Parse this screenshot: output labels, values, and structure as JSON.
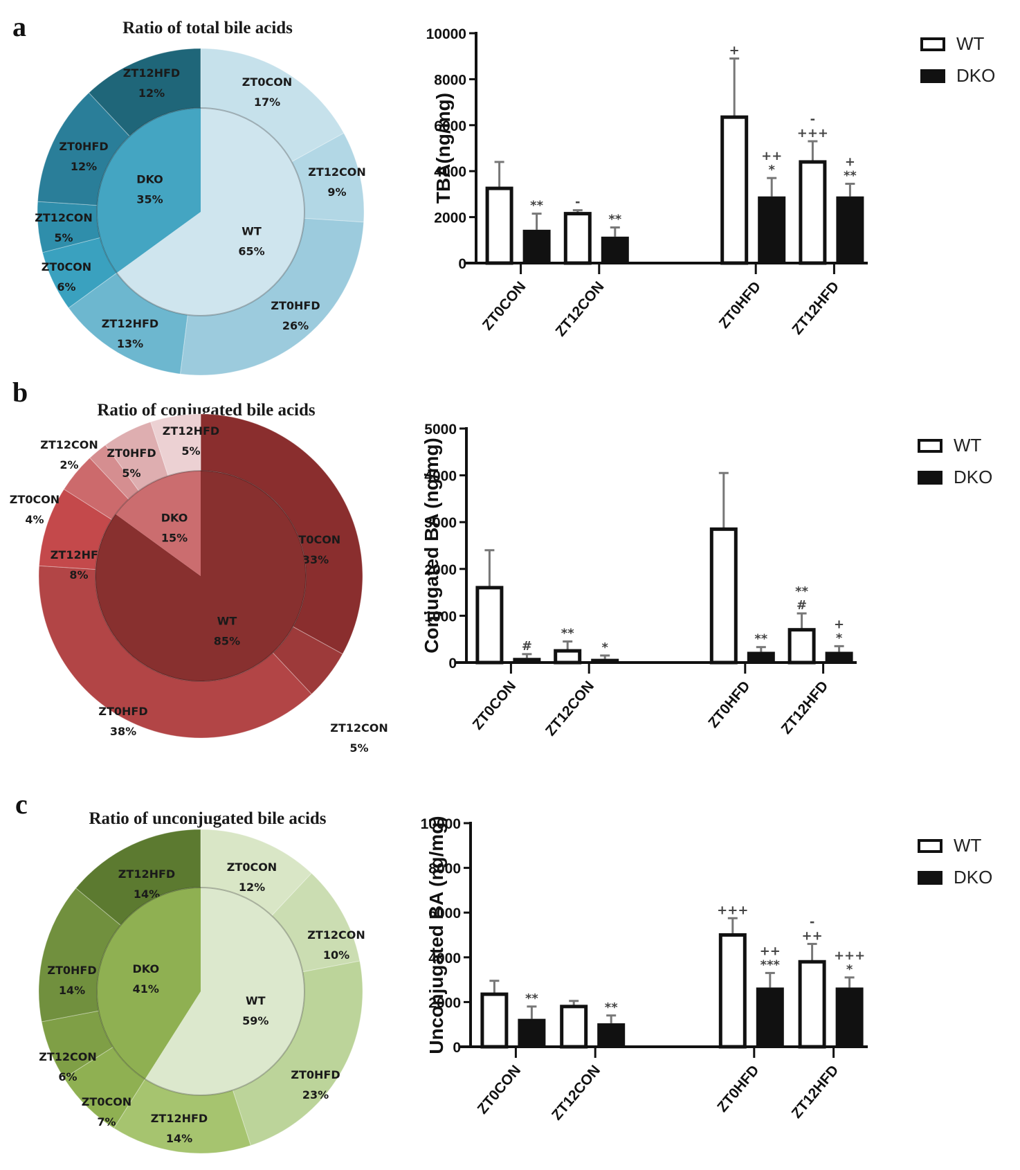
{
  "figure": {
    "panels": [
      {
        "letter": "a",
        "pie_title": "Ratio of total bile acids"
      },
      {
        "letter": "b",
        "pie_title": "Ratio of conjugated bile acids"
      },
      {
        "letter": "c",
        "pie_title": "Ratio of unconjugated bile acids"
      }
    ]
  },
  "chart_data": [
    {
      "type": "pie",
      "title": "Ratio of total bile acids",
      "inner": [
        {
          "label": "WT",
          "pct": "65%",
          "value": 65,
          "color": "#cfe5ee"
        },
        {
          "label": "DKO",
          "pct": "35%",
          "value": 35,
          "color": "#44a5c2"
        }
      ],
      "outer": [
        {
          "label": "ZT0CON",
          "pct": "17%",
          "value": 17,
          "color": "#c6e1eb"
        },
        {
          "label": "ZT12CON",
          "pct": "9%",
          "value": 9,
          "color": "#b2d7e5"
        },
        {
          "label": "ZT0HFD",
          "pct": "26%",
          "value": 26,
          "color": "#9ccbdd"
        },
        {
          "label": "ZT12HFD",
          "pct": "13%",
          "value": 13,
          "color": "#6db7cf"
        },
        {
          "label": "ZT0CON",
          "pct": "6%",
          "value": 6,
          "color": "#3aa1bf"
        },
        {
          "label": "ZT12CON",
          "pct": "5%",
          "value": 5,
          "color": "#2f8eab"
        },
        {
          "label": "ZT0HFD",
          "pct": "12%",
          "value": 12,
          "color": "#2a7e99"
        },
        {
          "label": "ZT12HFD",
          "pct": "12%",
          "value": 12,
          "color": "#1f6679"
        }
      ]
    },
    {
      "type": "bar",
      "title": "",
      "ylabel": "TBA(ng/mg)",
      "xlabel": "",
      "ylim": [
        0,
        10000
      ],
      "yticks": [
        "0",
        "2000",
        "4000",
        "6000",
        "8000",
        "10000"
      ],
      "categories": [
        "ZT0CON",
        "ZT12CON",
        "ZT0HFD",
        "ZT12HFD"
      ],
      "legend": {
        "position": "top-right",
        "entries": [
          "WT",
          "DKO"
        ]
      },
      "series": [
        {
          "name": "WT",
          "values": [
            3250,
            2150,
            6350,
            4400
          ],
          "errors": [
            1150,
            150,
            2550,
            900
          ],
          "annotations": [
            "",
            "-",
            "+",
            "- / +++"
          ]
        },
        {
          "name": "DKO",
          "values": [
            1450,
            1150,
            2900,
            2900
          ],
          "errors": [
            700,
            400,
            800,
            550
          ],
          "annotations": [
            "**",
            "**",
            "++ / *",
            "+ / **"
          ]
        }
      ]
    },
    {
      "type": "pie",
      "title": "Ratio of conjugated bile acids",
      "inner": [
        {
          "label": "WT",
          "pct": "85%",
          "value": 85,
          "color": "#88302f"
        },
        {
          "label": "DKO",
          "pct": "15%",
          "value": 15,
          "color": "#cb6d6f"
        }
      ],
      "outer": [
        {
          "label": "ZT0CON",
          "pct": "33%",
          "value": 33,
          "color": "#8a2e2e"
        },
        {
          "label": "ZT12CON",
          "pct": "5%",
          "value": 5,
          "color": "#9d3a3a"
        },
        {
          "label": "ZT0HFD",
          "pct": "38%",
          "value": 38,
          "color": "#b24546"
        },
        {
          "label": "ZT12HFD",
          "pct": "8%",
          "value": 8,
          "color": "#c4494b"
        },
        {
          "label": "ZT0CON",
          "pct": "4%",
          "value": 4,
          "color": "#cc6a6c"
        },
        {
          "label": "ZT12CON",
          "pct": "2%",
          "value": 2,
          "color": "#d58e90"
        },
        {
          "label": "ZT0HFD",
          "pct": "5%",
          "value": 5,
          "color": "#deaeb0"
        },
        {
          "label": "ZT12HFD",
          "pct": "5%",
          "value": 5,
          "color": "#ecd1d3"
        }
      ]
    },
    {
      "type": "bar",
      "title": "",
      "ylabel": "Conjugated BA (ng/mg)",
      "xlabel": "",
      "ylim": [
        0,
        5000
      ],
      "yticks": [
        "0",
        "1000",
        "2000",
        "3000",
        "4000",
        "5000"
      ],
      "categories": [
        "ZT0CON",
        "ZT12CON",
        "ZT0HFD",
        "ZT12HFD"
      ],
      "legend": {
        "position": "top-right",
        "entries": [
          "WT",
          "DKO"
        ]
      },
      "series": [
        {
          "name": "WT",
          "values": [
            1600,
            250,
            2850,
            700
          ],
          "errors": [
            800,
            200,
            1200,
            350
          ],
          "annotations": [
            "",
            "**",
            "",
            "** / #"
          ]
        },
        {
          "name": "DKO",
          "values": [
            100,
            80,
            230,
            230
          ],
          "errors": [
            80,
            70,
            100,
            120
          ],
          "annotations": [
            "#",
            "*",
            "**",
            "+ / *"
          ]
        }
      ]
    },
    {
      "type": "pie",
      "title": "Ratio of unconjugated bile acids",
      "inner": [
        {
          "label": "WT",
          "pct": "59%",
          "value": 59,
          "color": "#dce8cd"
        },
        {
          "label": "DKO",
          "pct": "41%",
          "value": 41,
          "color": "#8fb052"
        }
      ],
      "outer": [
        {
          "label": "ZT0CON",
          "pct": "12%",
          "value": 12,
          "color": "#d9e6c6"
        },
        {
          "label": "ZT12CON",
          "pct": "10%",
          "value": 10,
          "color": "#cbddb2"
        },
        {
          "label": "ZT0HFD",
          "pct": "23%",
          "value": 23,
          "color": "#bcd49a"
        },
        {
          "label": "ZT12HFD",
          "pct": "14%",
          "value": 14,
          "color": "#a6c46f"
        },
        {
          "label": "ZT0CON",
          "pct": "7%",
          "value": 7,
          "color": "#8fb052"
        },
        {
          "label": "ZT12CON",
          "pct": "6%",
          "value": 6,
          "color": "#7f9f46"
        },
        {
          "label": "ZT0HFD",
          "pct": "14%",
          "value": 14,
          "color": "#71903e"
        },
        {
          "label": "ZT12HFD",
          "pct": "14%",
          "value": 14,
          "color": "#5c7a30"
        }
      ]
    },
    {
      "type": "bar",
      "title": "",
      "ylabel": "Unconjugated BA (ng/mg)",
      "xlabel": "",
      "ylim": [
        0,
        10000
      ],
      "yticks": [
        "0",
        "2000",
        "4000",
        "6000",
        "8000",
        "10000"
      ],
      "categories": [
        "ZT0CON",
        "ZT12CON",
        "ZT0HFD",
        "ZT12HFD"
      ],
      "legend": {
        "position": "top-right",
        "entries": [
          "WT",
          "DKO"
        ]
      },
      "series": [
        {
          "name": "WT",
          "values": [
            2350,
            1800,
            5000,
            3800
          ],
          "errors": [
            600,
            250,
            750,
            800
          ],
          "annotations": [
            "",
            "",
            "+++",
            "- / ++"
          ]
        },
        {
          "name": "DKO",
          "values": [
            1250,
            1050,
            2650,
            2650
          ],
          "errors": [
            550,
            350,
            650,
            450
          ],
          "annotations": [
            "**",
            "**",
            "++ / ***",
            "+++ / *"
          ]
        }
      ]
    }
  ]
}
